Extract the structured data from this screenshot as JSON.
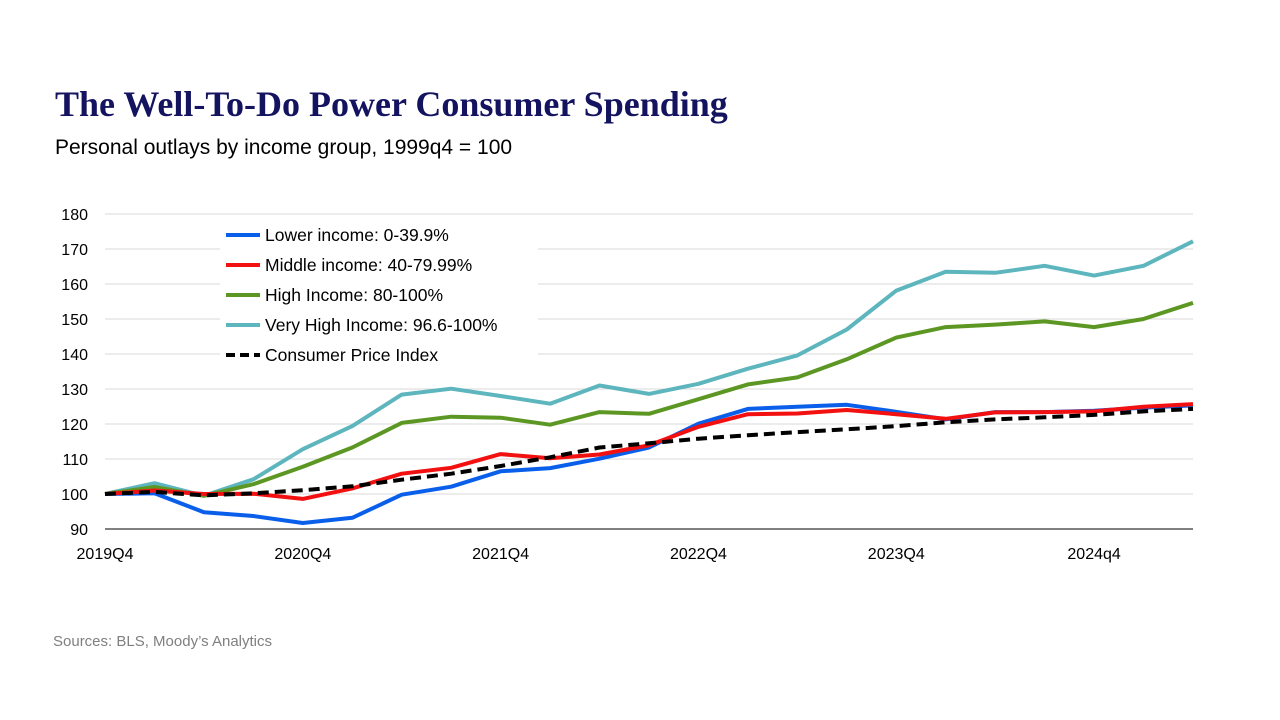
{
  "header": {
    "title": "The Well-To-Do Power Consumer Spending",
    "subtitle": "Personal outlays by income group, 1999q4 = 100"
  },
  "footer": {
    "source": "Sources: BLS, Moody’s Analytics"
  },
  "chart_data": {
    "type": "line",
    "title": "The Well-To-Do Power Consumer Spending",
    "subtitle": "Personal outlays by income group, 1999q4 = 100",
    "xlabel": "",
    "ylabel": "",
    "ylim": [
      90,
      180
    ],
    "yticks": [
      90,
      100,
      110,
      120,
      130,
      140,
      150,
      160,
      170,
      180
    ],
    "x_tick_labels": [
      {
        "index": 0,
        "label": "2019Q4"
      },
      {
        "index": 4,
        "label": "2020Q4"
      },
      {
        "index": 8,
        "label": "2021Q4"
      },
      {
        "index": 12,
        "label": "2022Q4"
      },
      {
        "index": 16,
        "label": "2023Q4"
      },
      {
        "index": 20,
        "label": "2024q4"
      }
    ],
    "categories": [
      "2019Q4",
      "2020Q1",
      "2020Q2",
      "2020Q3",
      "2020Q4",
      "2021Q1",
      "2021Q2",
      "2021Q3",
      "2021Q4",
      "2022Q1",
      "2022Q2",
      "2022Q3",
      "2022Q4",
      "2023Q1",
      "2023Q2",
      "2023Q3",
      "2023Q4",
      "2024Q1",
      "2024Q2",
      "2024Q3",
      "2024Q4",
      "2025Q1",
      "2025Q2"
    ],
    "grid": true,
    "legend_position": "top-left",
    "series": [
      {
        "name": "Lower income: 0-39.9%",
        "color": "#0a5fea",
        "dashed": false,
        "values": [
          100,
          100.2,
          94.8,
          93.7,
          91.7,
          93.2,
          99.8,
          102.1,
          106.5,
          107.4,
          110.1,
          113.3,
          120.1,
          124.3,
          124.9,
          125.5,
          123.5,
          121.3,
          123.4,
          123.4,
          123.8,
          124.7,
          125.3
        ]
      },
      {
        "name": "Middle income: 40-79.99%",
        "color": "#f21010",
        "dashed": false,
        "values": [
          100,
          101.0,
          100.0,
          100.1,
          98.6,
          101.6,
          105.8,
          107.5,
          111.4,
          110.2,
          111.3,
          113.9,
          119.2,
          122.8,
          123.0,
          124.0,
          122.8,
          121.5,
          123.3,
          123.4,
          123.6,
          124.9,
          125.7
        ]
      },
      {
        "name": "High Income: 80-100%",
        "color": "#5d9723",
        "dashed": false,
        "values": [
          100,
          102.0,
          99.5,
          102.8,
          107.8,
          113.3,
          120.3,
          122.1,
          121.8,
          119.8,
          123.4,
          122.9,
          127.1,
          131.3,
          133.3,
          138.5,
          144.7,
          147.7,
          148.4,
          149.3,
          147.7,
          150.0,
          154.6
        ]
      },
      {
        "name": "Very High Income: 96.6-100%",
        "color": "#5db5bd",
        "dashed": false,
        "values": [
          100,
          103.1,
          99.5,
          104.2,
          112.8,
          119.4,
          128.4,
          130.1,
          128.0,
          125.8,
          131.0,
          128.6,
          131.5,
          135.8,
          139.6,
          147.0,
          158.1,
          163.5,
          163.2,
          165.2,
          162.4,
          165.2,
          172.2
        ]
      },
      {
        "name": "Consumer Price Index",
        "color": "#000000",
        "dashed": true,
        "values": [
          100,
          100.6,
          99.6,
          100.2,
          101.1,
          102.2,
          104.1,
          105.8,
          108.0,
          110.5,
          113.3,
          114.5,
          115.8,
          116.8,
          117.7,
          118.5,
          119.4,
          120.5,
          121.3,
          121.9,
          122.6,
          123.6,
          124.3
        ]
      }
    ]
  }
}
